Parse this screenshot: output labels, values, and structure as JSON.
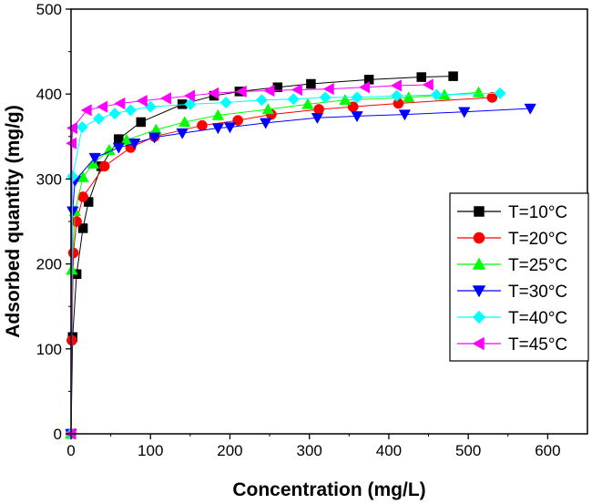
{
  "chart_data": {
    "type": "line",
    "title": "",
    "xlabel": "Concentration (mg/L)",
    "ylabel": "Adsorbed quantity (mg/g)",
    "xlim": [
      0,
      650
    ],
    "ylim": [
      0,
      500
    ],
    "xticks": [
      0,
      100,
      200,
      300,
      400,
      500,
      600
    ],
    "yticks": [
      0,
      100,
      200,
      300,
      400,
      500
    ],
    "grid": false,
    "legend_position": "center-right",
    "series": [
      {
        "name": "T=10°C",
        "color": "#000000",
        "marker": "square",
        "x": [
          0,
          2,
          7,
          15,
          22,
          38,
          60,
          88,
          140,
          180,
          212,
          260,
          302,
          375,
          441,
          481
        ],
        "y": [
          0,
          114,
          188,
          242,
          273,
          315,
          347,
          367,
          388,
          398,
          403,
          408,
          412,
          417,
          420,
          421
        ]
      },
      {
        "name": "T=20°C",
        "color": "#ff0000",
        "marker": "circle",
        "x": [
          0,
          1,
          3,
          7,
          15,
          42,
          75,
          105,
          165,
          210,
          252,
          312,
          355,
          412,
          530
        ],
        "y": [
          0,
          110,
          213,
          250,
          279,
          315,
          337,
          350,
          363,
          369,
          376,
          382,
          385,
          389,
          396
        ]
      },
      {
        "name": "T=25°C",
        "color": "#00ff00",
        "marker": "triangle-up",
        "x": [
          0,
          1,
          5,
          15,
          28,
          48,
          70,
          107,
          143,
          185,
          248,
          298,
          345,
          425,
          470,
          513
        ],
        "y": [
          0,
          193,
          262,
          302,
          318,
          334,
          346,
          358,
          367,
          375,
          382,
          388,
          393,
          396,
          399,
          402
        ]
      },
      {
        "name": "T=30°C",
        "color": "#0000ff",
        "marker": "triangle-down",
        "x": [
          0,
          2,
          5,
          30,
          60,
          80,
          105,
          140,
          185,
          200,
          245,
          310,
          360,
          420,
          495,
          578
        ],
        "y": [
          0,
          262,
          298,
          325,
          337,
          342,
          349,
          354,
          360,
          361,
          366,
          372,
          374,
          376,
          379,
          383
        ]
      },
      {
        "name": "T=40°C",
        "color": "#00ffff",
        "marker": "diamond",
        "x": [
          0,
          2,
          14,
          35,
          55,
          75,
          100,
          150,
          195,
          240,
          280,
          320,
          360,
          410,
          460,
          540
        ],
        "y": [
          0,
          303,
          361,
          371,
          377,
          381,
          385,
          388,
          390,
          393,
          394,
          396,
          396,
          398,
          399,
          401
        ]
      },
      {
        "name": "T=45°C",
        "color": "#ff00ff",
        "marker": "triangle-left",
        "x": [
          0,
          1,
          2,
          20,
          40,
          62,
          90,
          120,
          150,
          180,
          215,
          250,
          285,
          325,
          370,
          410,
          450
        ],
        "y": [
          0,
          342,
          360,
          381,
          385,
          389,
          392,
          395,
          398,
          401,
          403,
          404,
          405,
          406,
          408,
          410,
          411
        ]
      }
    ]
  }
}
